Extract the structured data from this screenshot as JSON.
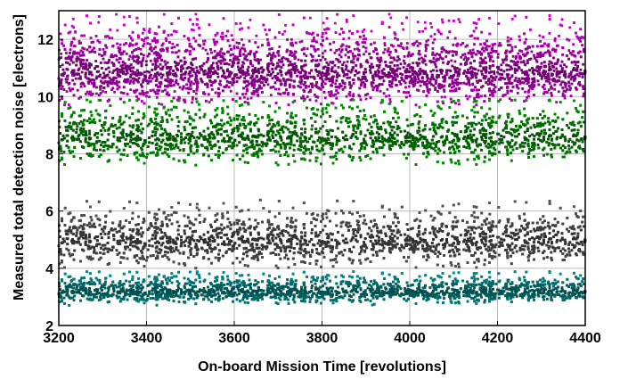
{
  "chart_data": {
    "type": "scatter",
    "title": "",
    "xlabel": "On-board Mission Time [revolutions]",
    "ylabel": "Measured total detection noise [electrons]",
    "xlim": [
      3200,
      4400
    ],
    "ylim": [
      2,
      13
    ],
    "xticks": [
      3200,
      3400,
      3600,
      3800,
      4000,
      4200,
      4400
    ],
    "yticks": [
      2,
      4,
      6,
      8,
      10,
      12
    ],
    "grid": true,
    "legend": "none",
    "gaps": [
      3745,
      3905,
      4118
    ],
    "series": [
      {
        "color": "#cc00cc",
        "center": 10.9,
        "spread_low": 9.8,
        "spread_high": 12.5,
        "sparse_high": 12.9
      },
      {
        "color": "#009900",
        "center": 8.6,
        "spread_low": 7.7,
        "spread_high": 9.8,
        "sparse_high": 9.9
      },
      {
        "color": "#555555",
        "center": 5.0,
        "spread_low": 4.1,
        "spread_high": 6.1,
        "sparse_high": 6.4
      },
      {
        "color": "#008b8b",
        "center": 3.2,
        "spread_low": 2.8,
        "spread_high": 3.8,
        "sparse_high": 3.9
      }
    ]
  }
}
